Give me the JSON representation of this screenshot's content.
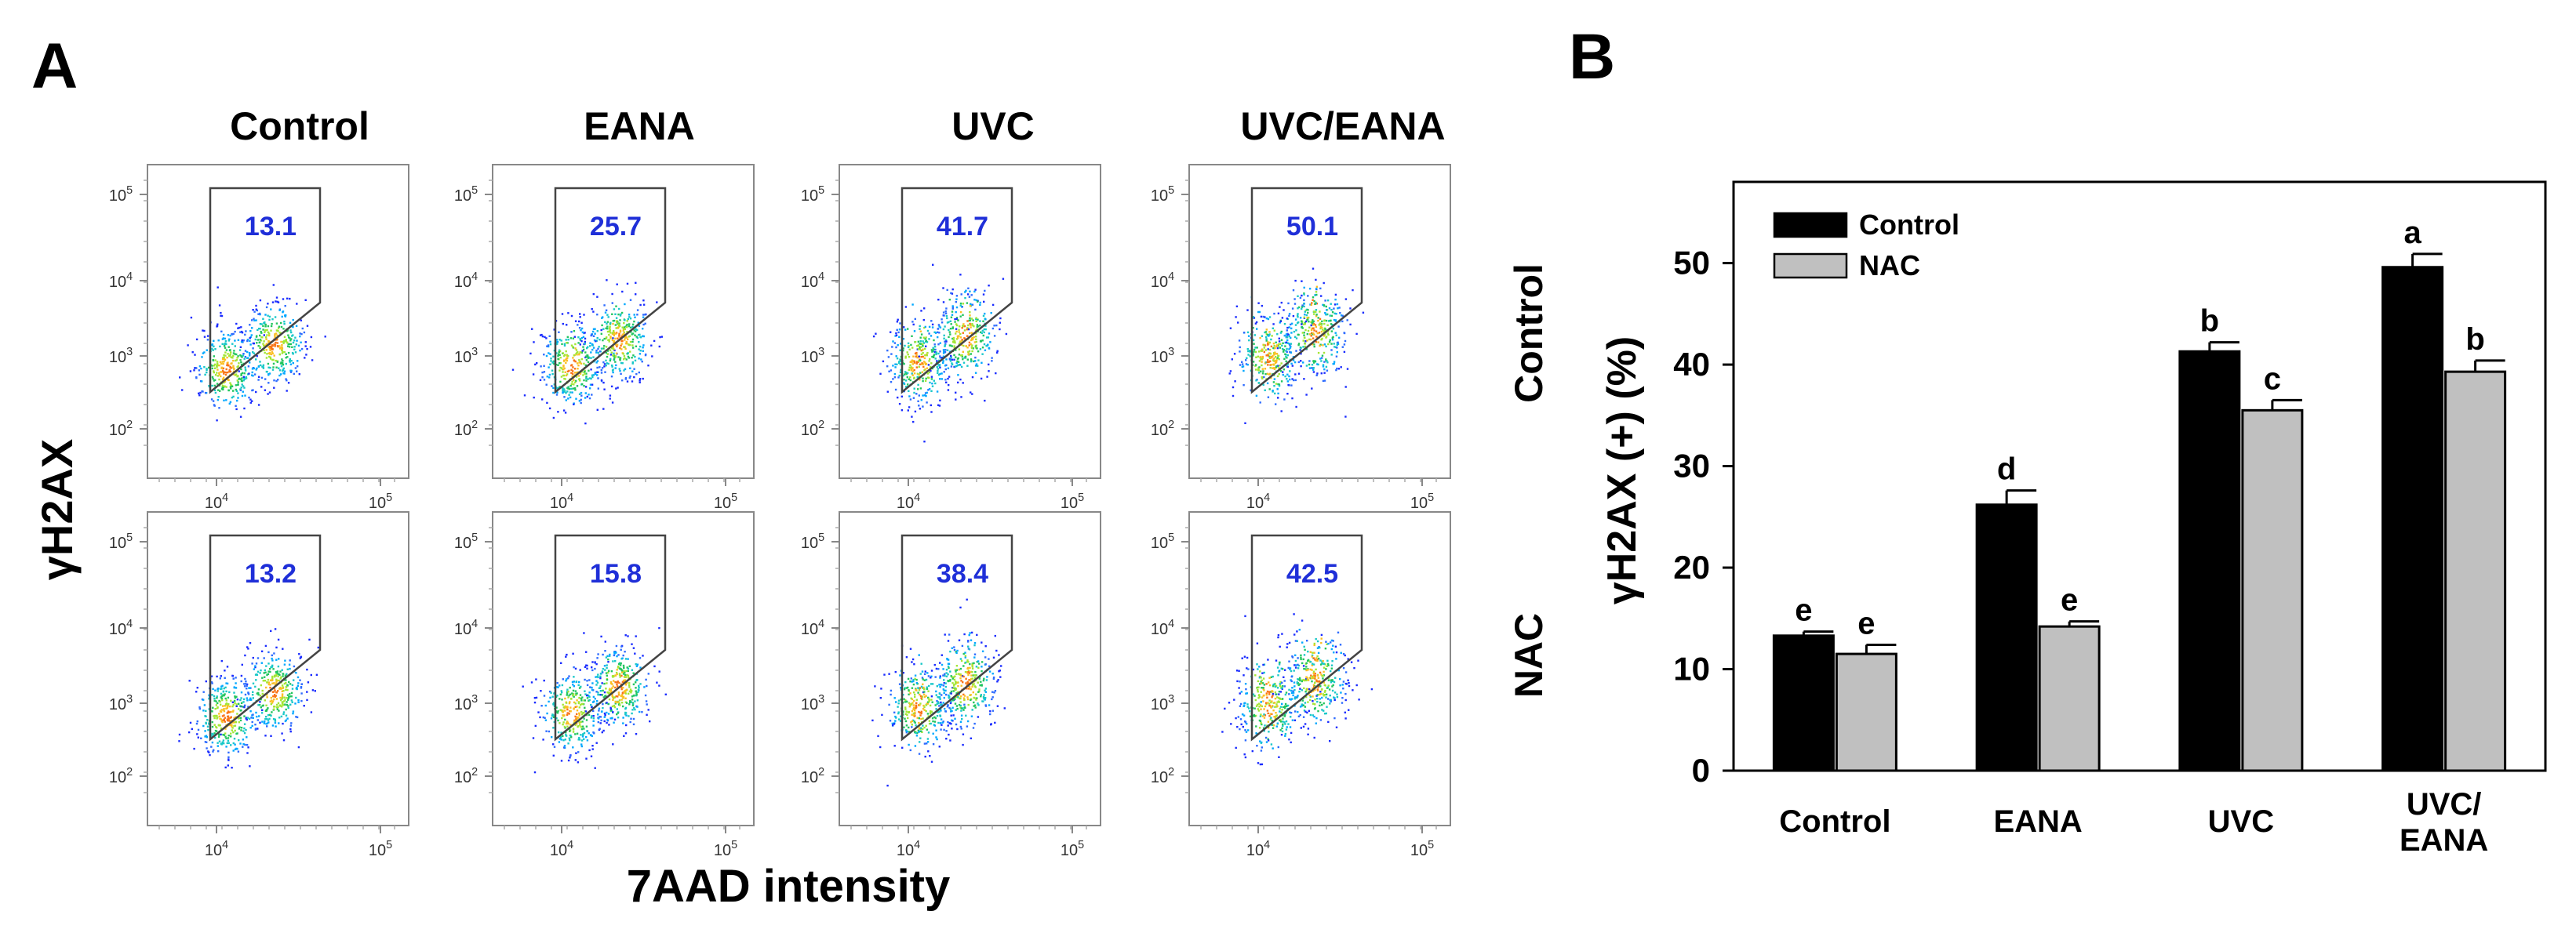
{
  "panel_a": {
    "label": "A",
    "column_headers": [
      "Control",
      "EANA",
      "UVC",
      "UVC/EANA"
    ],
    "row_labels": [
      "Control",
      "NAC"
    ],
    "gate_percentages": [
      [
        "13.1",
        "25.7",
        "41.7",
        "50.1"
      ],
      [
        "13.2",
        "15.8",
        "38.4",
        "42.5"
      ]
    ],
    "y_axis_label": "γH2AX",
    "x_axis_label": "7AAD intensity",
    "y_tick_labels": [
      "10^5",
      "10^4",
      "10^3",
      "10^2"
    ],
    "x_tick_labels": [
      "10^4",
      "10^5"
    ],
    "value_color": "#1f2fd8"
  },
  "panel_b": {
    "label": "B",
    "chart_data": {
      "type": "bar",
      "title": "",
      "categories": [
        "Control",
        "EANA",
        "UVC",
        "UVC/\nEANA"
      ],
      "series": [
        {
          "name": "Control",
          "color": "#000000",
          "values": [
            13.3,
            26.2,
            41.3,
            49.6
          ],
          "errors": [
            0.4,
            1.4,
            0.9,
            1.3
          ],
          "letters": [
            "e",
            "d",
            "b",
            "a"
          ]
        },
        {
          "name": "NAC",
          "color": "#c0c0c0",
          "values": [
            11.5,
            14.2,
            35.5,
            39.3
          ],
          "errors": [
            0.9,
            0.5,
            1.0,
            1.1
          ],
          "letters": [
            "e",
            "e",
            "c",
            "b"
          ]
        }
      ],
      "xlabel": "",
      "ylabel": "γH2AX (+) (%)",
      "ylim": [
        0,
        58
      ],
      "yticks": [
        0,
        10,
        20,
        30,
        40,
        50
      ],
      "legend_position": "top-left",
      "grid": false
    }
  }
}
